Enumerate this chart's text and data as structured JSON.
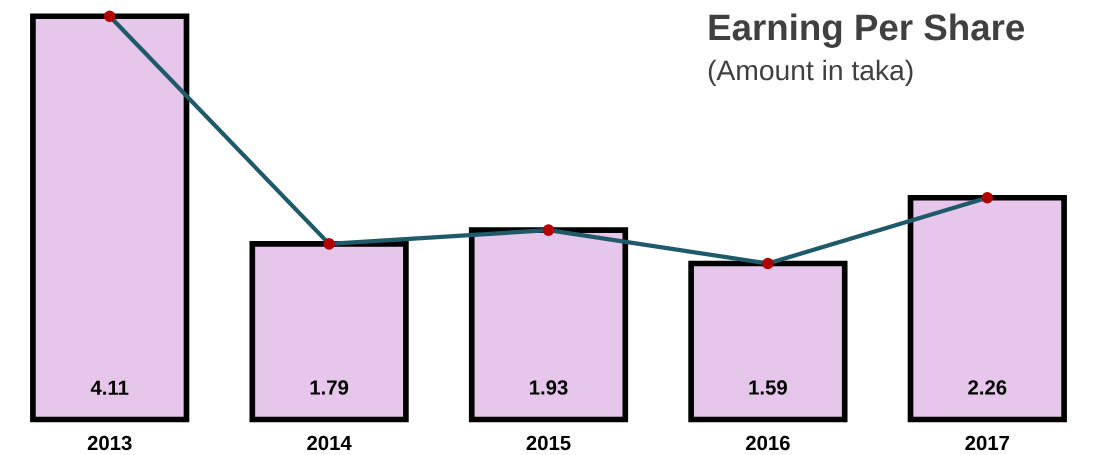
{
  "chart_data": {
    "type": "bar",
    "title": "Earning Per Share",
    "subtitle": "(Amount in taka)",
    "categories": [
      "2013",
      "2014",
      "2015",
      "2016",
      "2017"
    ],
    "series": [
      {
        "color": "#e6c6ea",
        "values": [
          4.11,
          1.79,
          1.93,
          1.59,
          2.26
        ],
        "value_labels": [
          "4.11",
          "1.79",
          "1.93",
          "1.59",
          "2.26"
        ]
      },
      {
        "type": "line",
        "color": "#1f5a6a",
        "values": [
          4.11,
          1.79,
          1.93,
          1.59,
          2.26
        ],
        "marker": "circle"
      }
    ]
  }
}
